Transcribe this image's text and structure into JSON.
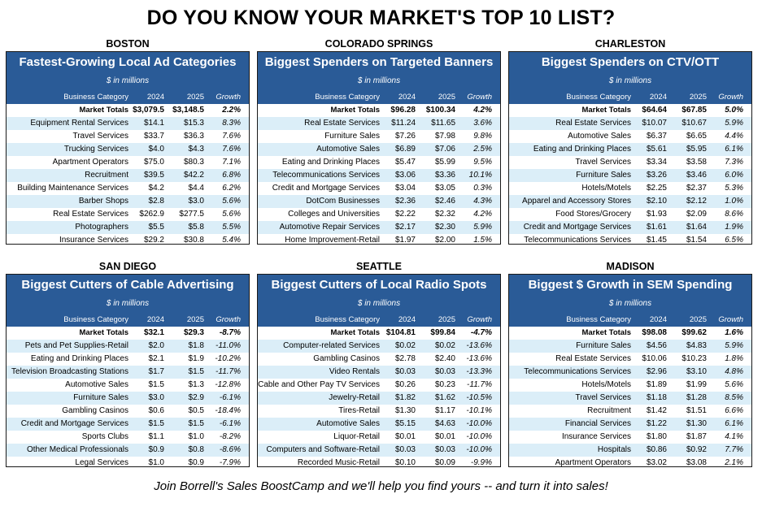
{
  "title": "DO YOU KNOW YOUR MARKET'S TOP 10 LIST?",
  "footer": "Join Borrell's Sales BoostCamp and we'll help you find yours -- and turn it into sales!",
  "units": "$ in millions",
  "columns": {
    "category": "Business Category",
    "y1": "2024",
    "y2": "2025",
    "growth": "Growth"
  },
  "panels": [
    {
      "city": "BOSTON",
      "subtitle": "Fastest-Growing Local Ad Categories",
      "total": {
        "category": "Market Totals",
        "y1": "$3,079.5",
        "y2": "$3,148.5",
        "growth": "2.2%"
      },
      "rows": [
        {
          "category": "Equipment Rental Services",
          "y1": "$14.1",
          "y2": "$15.3",
          "growth": "8.3%"
        },
        {
          "category": "Travel Services",
          "y1": "$33.7",
          "y2": "$36.3",
          "growth": "7.6%"
        },
        {
          "category": "Trucking Services",
          "y1": "$4.0",
          "y2": "$4.3",
          "growth": "7.6%"
        },
        {
          "category": "Apartment Operators",
          "y1": "$75.0",
          "y2": "$80.3",
          "growth": "7.1%"
        },
        {
          "category": "Recruitment",
          "y1": "$39.5",
          "y2": "$42.2",
          "growth": "6.8%"
        },
        {
          "category": "Building Maintenance Services",
          "y1": "$4.2",
          "y2": "$4.4",
          "growth": "6.2%"
        },
        {
          "category": "Barber Shops",
          "y1": "$2.8",
          "y2": "$3.0",
          "growth": "5.6%"
        },
        {
          "category": "Real Estate Services",
          "y1": "$262.9",
          "y2": "$277.5",
          "growth": "5.6%"
        },
        {
          "category": "Photographers",
          "y1": "$5.5",
          "y2": "$5.8",
          "growth": "5.5%"
        },
        {
          "category": "Insurance Services",
          "y1": "$29.2",
          "y2": "$30.8",
          "growth": "5.4%"
        }
      ]
    },
    {
      "city": "COLORADO SPRINGS",
      "subtitle": "Biggest Spenders on Targeted Banners",
      "total": {
        "category": "Market Totals",
        "y1": "$96.28",
        "y2": "$100.34",
        "growth": "4.2%"
      },
      "rows": [
        {
          "category": "Real Estate Services",
          "y1": "$11.24",
          "y2": "$11.65",
          "growth": "3.6%"
        },
        {
          "category": "Furniture Sales",
          "y1": "$7.26",
          "y2": "$7.98",
          "growth": "9.8%"
        },
        {
          "category": "Automotive Sales",
          "y1": "$6.89",
          "y2": "$7.06",
          "growth": "2.5%"
        },
        {
          "category": "Eating and Drinking Places",
          "y1": "$5.47",
          "y2": "$5.99",
          "growth": "9.5%"
        },
        {
          "category": "Telecommunications Services",
          "y1": "$3.06",
          "y2": "$3.36",
          "growth": "10.1%"
        },
        {
          "category": "Credit and Mortgage Services",
          "y1": "$3.04",
          "y2": "$3.05",
          "growth": "0.3%"
        },
        {
          "category": "DotCom Businesses",
          "y1": "$2.36",
          "y2": "$2.46",
          "growth": "4.3%"
        },
        {
          "category": "Colleges and Universities",
          "y1": "$2.22",
          "y2": "$2.32",
          "growth": "4.2%"
        },
        {
          "category": "Automotive Repair Services",
          "y1": "$2.17",
          "y2": "$2.30",
          "growth": "5.9%"
        },
        {
          "category": "Home Improvement-Retail",
          "y1": "$1.97",
          "y2": "$2.00",
          "growth": "1.5%"
        }
      ]
    },
    {
      "city": "CHARLESTON",
      "subtitle": "Biggest Spenders on CTV/OTT",
      "total": {
        "category": "Market Totals",
        "y1": "$64.64",
        "y2": "$67.85",
        "growth": "5.0%"
      },
      "rows": [
        {
          "category": "Real Estate Services",
          "y1": "$10.07",
          "y2": "$10.67",
          "growth": "5.9%"
        },
        {
          "category": "Automotive Sales",
          "y1": "$6.37",
          "y2": "$6.65",
          "growth": "4.4%"
        },
        {
          "category": "Eating and Drinking Places",
          "y1": "$5.61",
          "y2": "$5.95",
          "growth": "6.1%"
        },
        {
          "category": "Travel Services",
          "y1": "$3.34",
          "y2": "$3.58",
          "growth": "7.3%"
        },
        {
          "category": "Furniture Sales",
          "y1": "$3.26",
          "y2": "$3.46",
          "growth": "6.0%"
        },
        {
          "category": "Hotels/Motels",
          "y1": "$2.25",
          "y2": "$2.37",
          "growth": "5.3%"
        },
        {
          "category": "Apparel and Accessory Stores",
          "y1": "$2.10",
          "y2": "$2.12",
          "growth": "1.0%"
        },
        {
          "category": "Food Stores/Grocery",
          "y1": "$1.93",
          "y2": "$2.09",
          "growth": "8.6%"
        },
        {
          "category": "Credit and Mortgage Services",
          "y1": "$1.61",
          "y2": "$1.64",
          "growth": "1.9%"
        },
        {
          "category": "Telecommunications Services",
          "y1": "$1.45",
          "y2": "$1.54",
          "growth": "6.5%"
        }
      ]
    },
    {
      "city": "SAN DIEGO",
      "subtitle": "Biggest Cutters of Cable Advertising",
      "total": {
        "category": "Market Totals",
        "y1": "$32.1",
        "y2": "$29.3",
        "growth": "-8.7%"
      },
      "rows": [
        {
          "category": "Pets and Pet Supplies-Retail",
          "y1": "$2.0",
          "y2": "$1.8",
          "growth": "-11.0%"
        },
        {
          "category": "Eating and Drinking Places",
          "y1": "$2.1",
          "y2": "$1.9",
          "growth": "-10.2%"
        },
        {
          "category": "Television Broadcasting Stations",
          "y1": "$1.7",
          "y2": "$1.5",
          "growth": "-11.7%"
        },
        {
          "category": "Automotive Sales",
          "y1": "$1.5",
          "y2": "$1.3",
          "growth": "-12.8%"
        },
        {
          "category": "Furniture Sales",
          "y1": "$3.0",
          "y2": "$2.9",
          "growth": "-6.1%"
        },
        {
          "category": "Gambling Casinos",
          "y1": "$0.6",
          "y2": "$0.5",
          "growth": "-18.4%"
        },
        {
          "category": "Credit and Mortgage Services",
          "y1": "$1.5",
          "y2": "$1.5",
          "growth": "-6.1%"
        },
        {
          "category": "Sports Clubs",
          "y1": "$1.1",
          "y2": "$1.0",
          "growth": "-8.2%"
        },
        {
          "category": "Other Medical Professionals",
          "y1": "$0.9",
          "y2": "$0.8",
          "growth": "-8.6%"
        },
        {
          "category": "Legal Services",
          "y1": "$1.0",
          "y2": "$0.9",
          "growth": "-7.9%"
        }
      ]
    },
    {
      "city": "SEATTLE",
      "subtitle": "Biggest Cutters of Local Radio Spots",
      "total": {
        "category": "Market Totals",
        "y1": "$104.81",
        "y2": "$99.84",
        "growth": "-4.7%"
      },
      "rows": [
        {
          "category": "Computer-related Services",
          "y1": "$0.02",
          "y2": "$0.02",
          "growth": "-13.6%"
        },
        {
          "category": "Gambling Casinos",
          "y1": "$2.78",
          "y2": "$2.40",
          "growth": "-13.6%"
        },
        {
          "category": "Video Rentals",
          "y1": "$0.03",
          "y2": "$0.03",
          "growth": "-13.3%"
        },
        {
          "category": "Cable and Other Pay TV Services",
          "y1": "$0.26",
          "y2": "$0.23",
          "growth": "-11.7%"
        },
        {
          "category": "Jewelry-Retail",
          "y1": "$1.82",
          "y2": "$1.62",
          "growth": "-10.5%"
        },
        {
          "category": "Tires-Retail",
          "y1": "$1.30",
          "y2": "$1.17",
          "growth": "-10.1%"
        },
        {
          "category": "Automotive Sales",
          "y1": "$5.15",
          "y2": "$4.63",
          "growth": "-10.0%"
        },
        {
          "category": "Liquor-Retail",
          "y1": "$0.01",
          "y2": "$0.01",
          "growth": "-10.0%"
        },
        {
          "category": "Computers and Software-Retail",
          "y1": "$0.03",
          "y2": "$0.03",
          "growth": "-10.0%"
        },
        {
          "category": "Recorded Music-Retail",
          "y1": "$0.10",
          "y2": "$0.09",
          "growth": "-9.9%"
        }
      ]
    },
    {
      "city": "MADISON",
      "subtitle": "Biggest $ Growth in SEM Spending",
      "total": {
        "category": "Market Totals",
        "y1": "$98.08",
        "y2": "$99.62",
        "growth": "1.6%"
      },
      "rows": [
        {
          "category": "Furniture Sales",
          "y1": "$4.56",
          "y2": "$4.83",
          "growth": "5.9%"
        },
        {
          "category": "Real Estate Services",
          "y1": "$10.06",
          "y2": "$10.23",
          "growth": "1.8%"
        },
        {
          "category": "Telecommunications Services",
          "y1": "$2.96",
          "y2": "$3.10",
          "growth": "4.8%"
        },
        {
          "category": "Hotels/Motels",
          "y1": "$1.89",
          "y2": "$1.99",
          "growth": "5.6%"
        },
        {
          "category": "Travel Services",
          "y1": "$1.18",
          "y2": "$1.28",
          "growth": "8.5%"
        },
        {
          "category": "Recruitment",
          "y1": "$1.42",
          "y2": "$1.51",
          "growth": "6.6%"
        },
        {
          "category": "Financial Services",
          "y1": "$1.22",
          "y2": "$1.30",
          "growth": "6.1%"
        },
        {
          "category": "Insurance Services",
          "y1": "$1.80",
          "y2": "$1.87",
          "growth": "4.1%"
        },
        {
          "category": "Hospitals",
          "y1": "$0.86",
          "y2": "$0.92",
          "growth": "7.7%"
        },
        {
          "category": "Apartment Operators",
          "y1": "$3.02",
          "y2": "$3.08",
          "growth": "2.1%"
        }
      ]
    }
  ]
}
